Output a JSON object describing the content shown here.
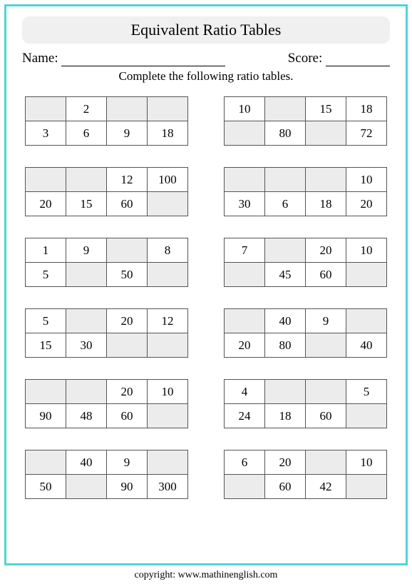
{
  "title": "Equivalent Ratio Tables",
  "name_label": "Name:",
  "score_label": "Score:",
  "instruction": "Complete the following ratio tables.",
  "copyright": "copyright:   www.mathinenglish.com",
  "styling": {
    "border_color": "#4fd4d4",
    "title_bg": "#f0f0f0",
    "empty_cell_bg": "#ececec",
    "cell_border": "#555555",
    "text_color": "#000000",
    "page_bg": "#ffffff",
    "cols_per_table": 4,
    "rows_per_table": 2,
    "grid_cols": 2,
    "grid_rows": 6,
    "title_fontsize": 22,
    "label_fontsize": 19,
    "instruction_fontsize": 17,
    "cell_fontsize": 17
  },
  "tables": [
    [
      [
        "",
        "2",
        "",
        ""
      ],
      [
        "3",
        "6",
        "9",
        "18"
      ]
    ],
    [
      [
        "10",
        "",
        "15",
        "18"
      ],
      [
        "",
        "80",
        "",
        "72"
      ]
    ],
    [
      [
        "",
        "",
        "12",
        "100"
      ],
      [
        "20",
        "15",
        "60",
        ""
      ]
    ],
    [
      [
        "",
        "",
        "",
        "10"
      ],
      [
        "30",
        "6",
        "18",
        "20"
      ]
    ],
    [
      [
        "1",
        "9",
        "",
        "8"
      ],
      [
        "5",
        "",
        "50",
        ""
      ]
    ],
    [
      [
        "7",
        "",
        "20",
        "10"
      ],
      [
        "",
        "45",
        "60",
        ""
      ]
    ],
    [
      [
        "5",
        "",
        "20",
        "12"
      ],
      [
        "15",
        "30",
        "",
        ""
      ]
    ],
    [
      [
        "",
        "40",
        "9",
        ""
      ],
      [
        "20",
        "80",
        "",
        "40"
      ]
    ],
    [
      [
        "",
        "",
        "20",
        "10"
      ],
      [
        "90",
        "48",
        "60",
        ""
      ]
    ],
    [
      [
        "4",
        "",
        "",
        "5"
      ],
      [
        "24",
        "18",
        "60",
        ""
      ]
    ],
    [
      [
        "",
        "40",
        "9",
        ""
      ],
      [
        "50",
        "",
        "90",
        "300"
      ]
    ],
    [
      [
        "6",
        "20",
        "",
        "10"
      ],
      [
        "",
        "60",
        "42",
        ""
      ]
    ]
  ]
}
